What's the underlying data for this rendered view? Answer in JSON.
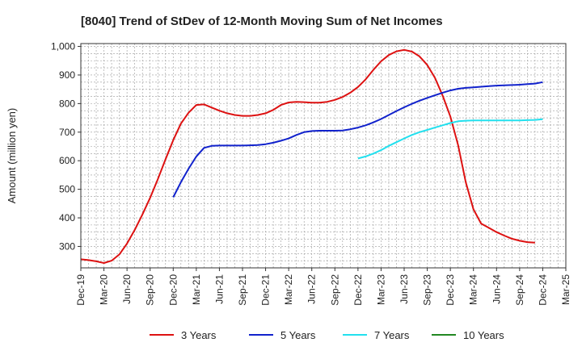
{
  "chart_data": {
    "type": "line",
    "title": "[8040]  Trend of StDev of 12-Month Moving Sum of Net Incomes",
    "xlabel": "",
    "ylabel": "Amount (million yen)",
    "ylim": [
      225,
      1010
    ],
    "yticks": [
      300,
      400,
      500,
      600,
      700,
      800,
      900,
      1000
    ],
    "ytick_labels": [
      "300",
      "400",
      "500",
      "600",
      "700",
      "800",
      "900",
      "1,000"
    ],
    "xlim": [
      "2019-12",
      "2025-03"
    ],
    "xtick_labels": [
      "Dec-19",
      "Mar-20",
      "Jun-20",
      "Sep-20",
      "Dec-20",
      "Mar-21",
      "Jun-21",
      "Sep-21",
      "Dec-21",
      "Mar-22",
      "Jun-22",
      "Sep-22",
      "Dec-22",
      "Mar-23",
      "Jun-23",
      "Sep-23",
      "Dec-23",
      "Mar-24",
      "Jun-24",
      "Sep-24",
      "Dec-24",
      "Mar-25"
    ],
    "grid": true,
    "legend_position": "bottom",
    "series": [
      {
        "name": "3 Years",
        "color": "#dd1111",
        "x": [
          "2019-12",
          "2020-01",
          "2020-02",
          "2020-03",
          "2020-04",
          "2020-05",
          "2020-06",
          "2020-07",
          "2020-08",
          "2020-09",
          "2020-10",
          "2020-11",
          "2020-12",
          "2021-01",
          "2021-02",
          "2021-03",
          "2021-04",
          "2021-05",
          "2021-06",
          "2021-07",
          "2021-08",
          "2021-09",
          "2021-10",
          "2021-11",
          "2021-12",
          "2022-01",
          "2022-02",
          "2022-03",
          "2022-04",
          "2022-05",
          "2022-06",
          "2022-07",
          "2022-08",
          "2022-09",
          "2022-10",
          "2022-11",
          "2022-12",
          "2023-01",
          "2023-02",
          "2023-03",
          "2023-04",
          "2023-05",
          "2023-06",
          "2023-07",
          "2023-08",
          "2023-09",
          "2023-10",
          "2023-11",
          "2023-12",
          "2024-01",
          "2024-02",
          "2024-03",
          "2024-04",
          "2024-05",
          "2024-06",
          "2024-07",
          "2024-08",
          "2024-09",
          "2024-10",
          "2024-11",
          "2024-12"
        ],
        "values": [
          255,
          252,
          248,
          242,
          250,
          272,
          310,
          358,
          412,
          470,
          535,
          605,
          672,
          730,
          768,
          795,
          797,
          786,
          775,
          766,
          760,
          757,
          757,
          760,
          766,
          778,
          795,
          804,
          806,
          805,
          803,
          803,
          806,
          813,
          823,
          838,
          858,
          885,
          918,
          948,
          970,
          983,
          988,
          982,
          965,
          935,
          890,
          828,
          755,
          655,
          525,
          430,
          380,
          365,
          350,
          338,
          327,
          320,
          315,
          313,
          null
        ]
      },
      {
        "name": "5 Years",
        "color": "#1122cc",
        "x": [
          "2020-12",
          "2021-01",
          "2021-02",
          "2021-03",
          "2021-04",
          "2021-05",
          "2021-06",
          "2021-07",
          "2021-08",
          "2021-09",
          "2021-10",
          "2021-11",
          "2021-12",
          "2022-01",
          "2022-02",
          "2022-03",
          "2022-04",
          "2022-05",
          "2022-06",
          "2022-07",
          "2022-08",
          "2022-09",
          "2022-10",
          "2022-11",
          "2022-12",
          "2023-01",
          "2023-02",
          "2023-03",
          "2023-04",
          "2023-05",
          "2023-06",
          "2023-07",
          "2023-08",
          "2023-09",
          "2023-10",
          "2023-11",
          "2023-12",
          "2024-01",
          "2024-02",
          "2024-03",
          "2024-04",
          "2024-05",
          "2024-06",
          "2024-07",
          "2024-08",
          "2024-09",
          "2024-10",
          "2024-11",
          "2024-12"
        ],
        "values": [
          472,
          525,
          572,
          615,
          645,
          652,
          653,
          653,
          653,
          653,
          654,
          655,
          658,
          663,
          670,
          678,
          690,
          700,
          704,
          705,
          705,
          705,
          706,
          710,
          716,
          724,
          734,
          746,
          760,
          774,
          787,
          799,
          810,
          820,
          829,
          838,
          846,
          852,
          855,
          857,
          859,
          861,
          863,
          864,
          865,
          866,
          868,
          870,
          875
        ]
      },
      {
        "name": "7 Years",
        "color": "#22e0ee",
        "x": [
          "2022-12",
          "2023-01",
          "2023-02",
          "2023-03",
          "2023-04",
          "2023-05",
          "2023-06",
          "2023-07",
          "2023-08",
          "2023-09",
          "2023-10",
          "2023-11",
          "2023-12",
          "2024-01",
          "2024-02",
          "2024-03",
          "2024-04",
          "2024-05",
          "2024-06",
          "2024-07",
          "2024-08",
          "2024-09",
          "2024-10",
          "2024-11",
          "2024-12"
        ],
        "values": [
          608,
          615,
          625,
          637,
          652,
          665,
          678,
          690,
          700,
          708,
          716,
          724,
          732,
          738,
          740,
          741,
          741,
          741,
          741,
          741,
          741,
          741,
          742,
          743,
          745
        ]
      },
      {
        "name": "10 Years",
        "color": "#228822",
        "x": [],
        "values": []
      }
    ]
  }
}
